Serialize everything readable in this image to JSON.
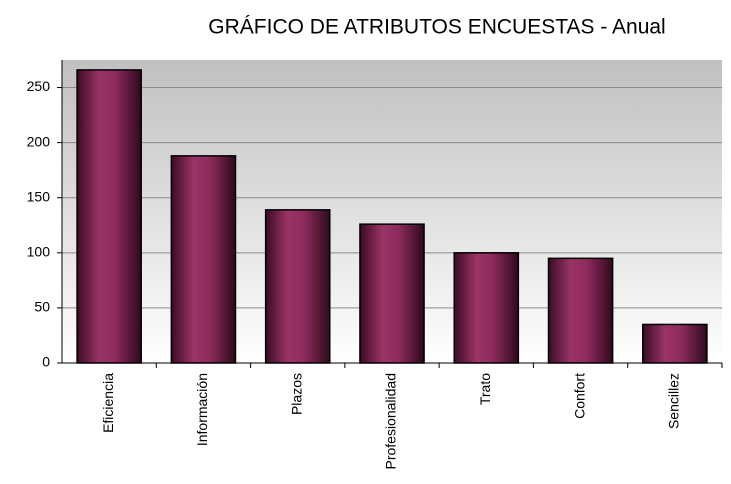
{
  "chart_data": {
    "type": "bar",
    "title": "GRÁFICO DE ATRIBUTOS ENCUESTAS - Anual",
    "categories": [
      "Eficiencia",
      "Información",
      "Plazos",
      "Profesionalidad",
      "Trato",
      "Confort",
      "Sencillez"
    ],
    "values": [
      266,
      188,
      139,
      126,
      100,
      95,
      35
    ],
    "color": "#8e2a5c",
    "ylim": [
      0,
      275
    ],
    "yticks": [
      0,
      50,
      100,
      150,
      200,
      250
    ],
    "grid": true
  }
}
